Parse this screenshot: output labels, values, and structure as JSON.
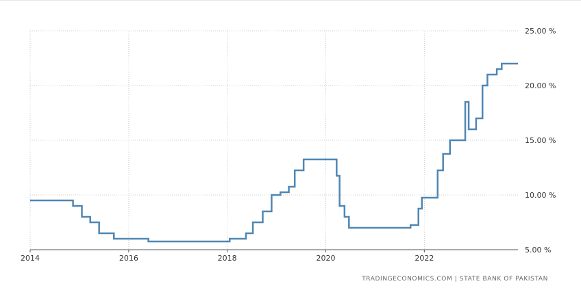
{
  "chart_data": {
    "type": "line",
    "title": "",
    "xlabel": "",
    "ylabel": "",
    "step": true,
    "grid": "dotted",
    "y_axis_side": "right",
    "line_color": "#4f86b3",
    "xlim": [
      2014.0,
      2023.9
    ],
    "ylim": [
      5,
      25
    ],
    "x_ticks": [
      {
        "value": 2014,
        "label": "2014"
      },
      {
        "value": 2016,
        "label": "2016"
      },
      {
        "value": 2018,
        "label": "2018"
      },
      {
        "value": 2020,
        "label": "2020"
      },
      {
        "value": 2022,
        "label": "2022"
      }
    ],
    "y_ticks": [
      {
        "value": 5,
        "label": "5.00 %"
      },
      {
        "value": 10,
        "label": "10.00 %"
      },
      {
        "value": 15,
        "label": "15.00 %"
      },
      {
        "value": 20,
        "label": "20.00 %"
      },
      {
        "value": 25,
        "label": "25.00 %"
      }
    ],
    "series": [
      {
        "values": [
          {
            "x": 2014.0,
            "y": 9.5
          },
          {
            "x": 2014.87,
            "y": 9.0
          },
          {
            "x": 2015.05,
            "y": 8.0
          },
          {
            "x": 2015.22,
            "y": 7.5
          },
          {
            "x": 2015.4,
            "y": 6.5
          },
          {
            "x": 2015.7,
            "y": 6.0
          },
          {
            "x": 2016.4,
            "y": 5.75
          },
          {
            "x": 2018.05,
            "y": 6.0
          },
          {
            "x": 2018.38,
            "y": 6.5
          },
          {
            "x": 2018.52,
            "y": 7.5
          },
          {
            "x": 2018.72,
            "y": 8.5
          },
          {
            "x": 2018.9,
            "y": 10.0
          },
          {
            "x": 2019.08,
            "y": 10.25
          },
          {
            "x": 2019.25,
            "y": 10.75
          },
          {
            "x": 2019.37,
            "y": 12.25
          },
          {
            "x": 2019.55,
            "y": 13.25
          },
          {
            "x": 2020.22,
            "y": 11.75
          },
          {
            "x": 2020.28,
            "y": 9.0
          },
          {
            "x": 2020.38,
            "y": 8.0
          },
          {
            "x": 2020.47,
            "y": 7.0
          },
          {
            "x": 2021.72,
            "y": 7.25
          },
          {
            "x": 2021.88,
            "y": 8.75
          },
          {
            "x": 2021.95,
            "y": 9.75
          },
          {
            "x": 2022.27,
            "y": 12.25
          },
          {
            "x": 2022.38,
            "y": 13.75
          },
          {
            "x": 2022.52,
            "y": 15.0
          },
          {
            "x": 2022.83,
            "y": 18.5
          },
          {
            "x": 2022.9,
            "y": 16.0
          },
          {
            "x": 2023.05,
            "y": 17.0
          },
          {
            "x": 2023.18,
            "y": 20.0
          },
          {
            "x": 2023.28,
            "y": 21.0
          },
          {
            "x": 2023.47,
            "y": 21.5
          },
          {
            "x": 2023.57,
            "y": 22.0
          },
          {
            "x": 2023.9,
            "y": 22.0
          }
        ]
      }
    ]
  },
  "credit": "TRADINGECONOMICS.COM  |  STATE BANK OF PAKISTAN"
}
